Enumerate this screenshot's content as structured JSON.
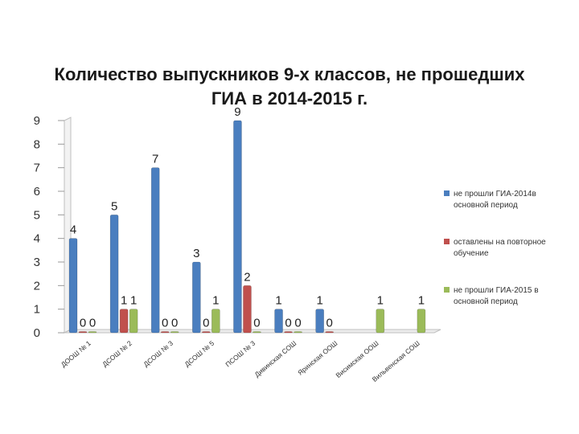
{
  "chart_data": {
    "type": "bar",
    "title": "Количество выпускников 9-х классов, не прошедших ГИА в 2014-2015 г.",
    "categories": [
      "ДООШ № 1",
      "ДСОШ № 2",
      "ДСОШ № 3",
      "ДСОШ № 5",
      "ПСОШ № 3",
      "Дивинская СОШ",
      "Яринская ООШ",
      "Висимская ООШ",
      "Вильвенская СОШ"
    ],
    "series": [
      {
        "name": "не прошли ГИА-2014в основной период",
        "color": "#4a7ebf",
        "values": [
          4,
          5,
          7,
          3,
          9,
          1,
          1,
          null,
          null
        ]
      },
      {
        "name": "оставлены на повторное обучение",
        "color": "#c0504d",
        "values": [
          0,
          1,
          0,
          0,
          2,
          0,
          0,
          null,
          null
        ]
      },
      {
        "name": "не прошли ГИА-2015 в основной период",
        "color": "#9bbb59",
        "values": [
          0,
          1,
          0,
          1,
          0,
          0,
          null,
          1,
          1
        ]
      }
    ],
    "data_labels": [
      [
        "4",
        "5",
        "7",
        "3",
        "9",
        "1",
        "1",
        "",
        ""
      ],
      [
        "0",
        "1",
        "0",
        "0",
        "2",
        "0",
        "0",
        "",
        ""
      ],
      [
        "0",
        "1",
        "0",
        "1",
        "0",
        "0",
        "",
        "1",
        "1"
      ]
    ],
    "ylim": [
      0,
      9
    ],
    "yticks": [
      "0",
      "1",
      "2",
      "3",
      "4",
      "5",
      "6",
      "7",
      "8",
      "9"
    ],
    "xlabel": "",
    "ylabel": "",
    "grid": false,
    "legend_position": "right"
  }
}
